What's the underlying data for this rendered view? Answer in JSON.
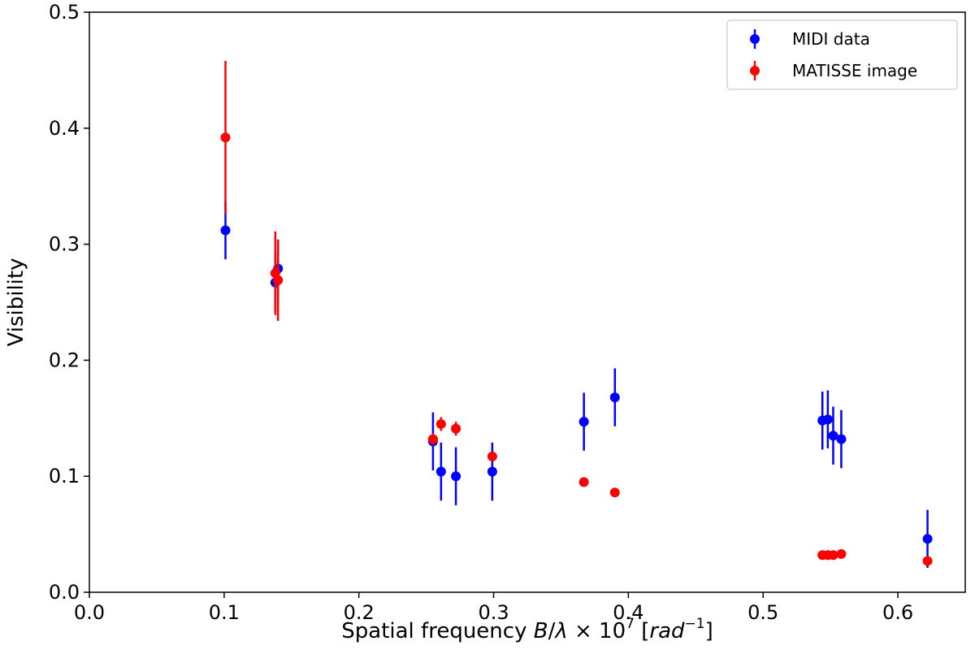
{
  "chart_data": {
    "type": "scatter",
    "title": "",
    "xlabel": {
      "pre": "Spatial frequency ",
      "math_B": "B",
      "math_slash": "/",
      "math_lambda": "λ",
      "math_times": " × 10",
      "math_exp": "7",
      "math_open": " [",
      "math_rad": "rad",
      "math_unit_exp": "−1",
      "math_close": "]"
    },
    "ylabel": "Visibility",
    "xlim": [
      0.0,
      0.65
    ],
    "ylim": [
      0.0,
      0.5
    ],
    "x_ticks": [
      0.0,
      0.1,
      0.2,
      0.3,
      0.4,
      0.5,
      0.6
    ],
    "x_tick_labels": [
      "0.0",
      "0.1",
      "0.2",
      "0.3",
      "0.4",
      "0.5",
      "0.6"
    ],
    "y_ticks": [
      0.0,
      0.1,
      0.2,
      0.3,
      0.4,
      0.5
    ],
    "y_tick_labels": [
      "0.0",
      "0.1",
      "0.2",
      "0.3",
      "0.4",
      "0.5"
    ],
    "grid": false,
    "legend_position": "top-right",
    "series": [
      {
        "name": "MIDI data",
        "color": "#0000ff",
        "points": [
          {
            "x": 0.101,
            "y": 0.312,
            "err": 0.025
          },
          {
            "x": 0.138,
            "y": 0.267,
            "err": 0.025
          },
          {
            "x": 0.14,
            "y": 0.279,
            "err": 0.025
          },
          {
            "x": 0.255,
            "y": 0.13,
            "err": 0.025
          },
          {
            "x": 0.261,
            "y": 0.104,
            "err": 0.025
          },
          {
            "x": 0.272,
            "y": 0.1,
            "err": 0.025
          },
          {
            "x": 0.299,
            "y": 0.104,
            "err": 0.025
          },
          {
            "x": 0.367,
            "y": 0.147,
            "err": 0.025
          },
          {
            "x": 0.39,
            "y": 0.168,
            "err": 0.025
          },
          {
            "x": 0.544,
            "y": 0.148,
            "err": 0.025
          },
          {
            "x": 0.548,
            "y": 0.149,
            "err": 0.025
          },
          {
            "x": 0.552,
            "y": 0.135,
            "err": 0.025
          },
          {
            "x": 0.558,
            "y": 0.132,
            "err": 0.025
          },
          {
            "x": 0.622,
            "y": 0.046,
            "err": 0.025
          }
        ]
      },
      {
        "name": "MATISSE image",
        "color": "#ff0000",
        "points": [
          {
            "x": 0.101,
            "y": 0.392,
            "err": 0.066
          },
          {
            "x": 0.138,
            "y": 0.275,
            "err": 0.036
          },
          {
            "x": 0.14,
            "y": 0.269,
            "err": 0.035
          },
          {
            "x": 0.255,
            "y": 0.132,
            "err": 0.005
          },
          {
            "x": 0.261,
            "y": 0.145,
            "err": 0.006
          },
          {
            "x": 0.272,
            "y": 0.141,
            "err": 0.006
          },
          {
            "x": 0.299,
            "y": 0.117,
            "err": 0.004
          },
          {
            "x": 0.367,
            "y": 0.095,
            "err": 0.002
          },
          {
            "x": 0.39,
            "y": 0.086,
            "err": 0.002
          },
          {
            "x": 0.544,
            "y": 0.032,
            "err": 0.001
          },
          {
            "x": 0.548,
            "y": 0.032,
            "err": 0.001
          },
          {
            "x": 0.552,
            "y": 0.032,
            "err": 0.001
          },
          {
            "x": 0.558,
            "y": 0.033,
            "err": 0.001
          },
          {
            "x": 0.622,
            "y": 0.027,
            "err": 0.003
          }
        ]
      }
    ]
  }
}
